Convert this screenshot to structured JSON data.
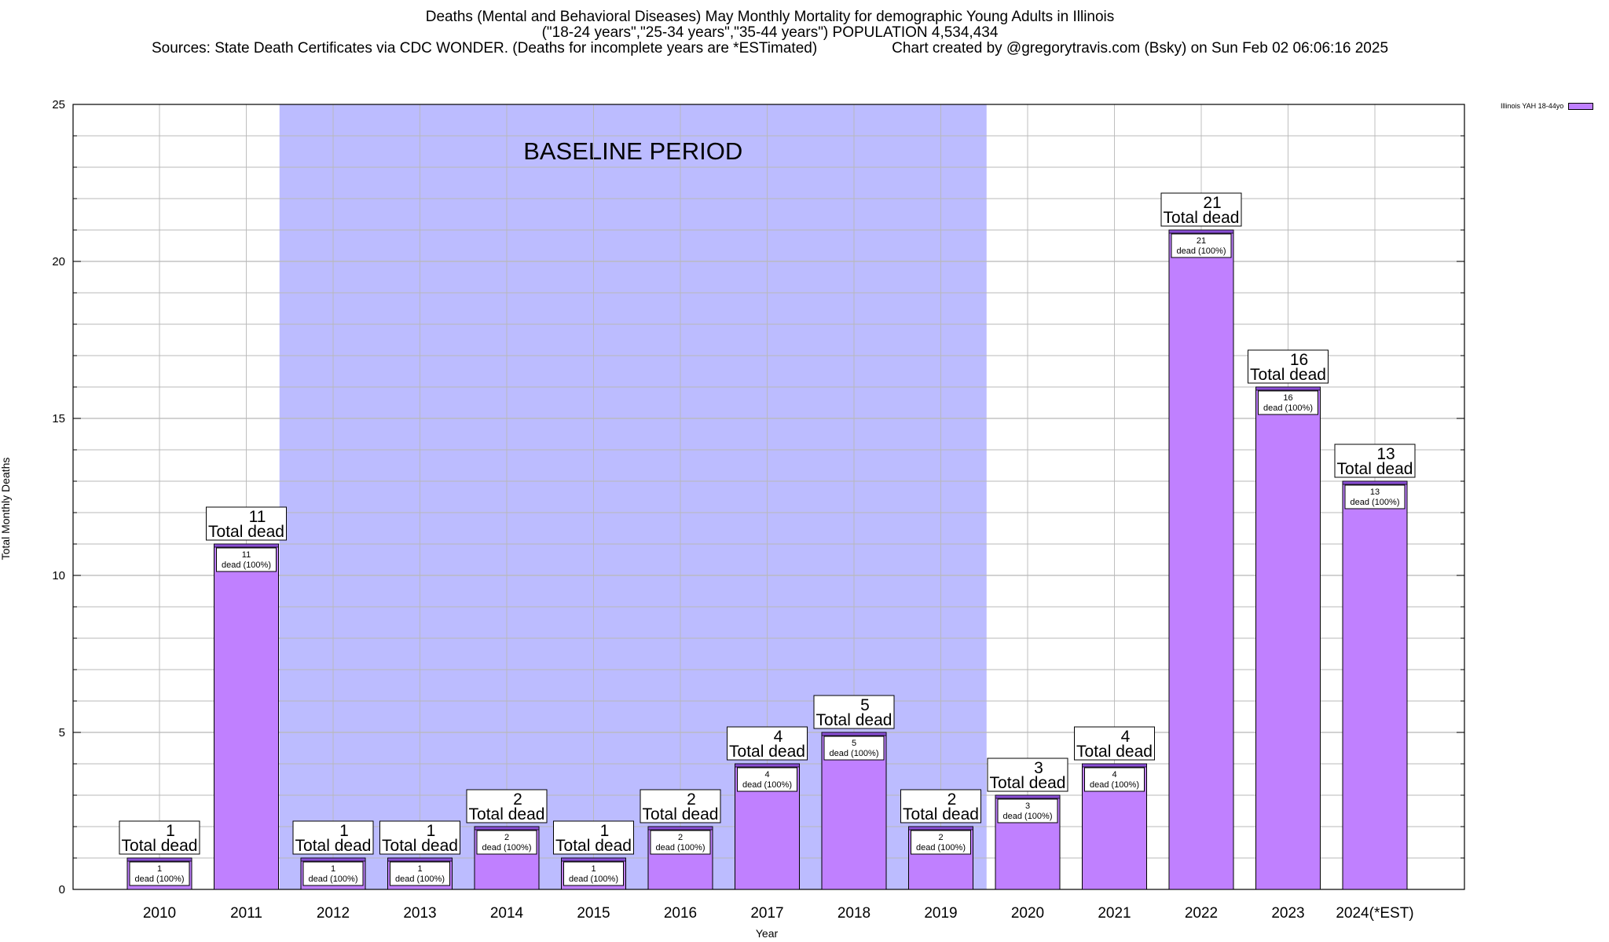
{
  "chart_data": {
    "type": "bar",
    "title": "Deaths (Mental and Behavioral Diseases) May Monthly Mortality for demographic Young Adults in Illinois",
    "subtitle": "(\"18-24 years\",\"25-34 years\",\"35-44 years\") POPULATION 4,534,434",
    "sources": "Sources: State Death Certificates via CDC WONDER. (Deaths for incomplete years are *ESTimated)",
    "credit": "Chart created by @gregorytravis.com (Bsky) on Sun Feb 02 06:06:16 2025",
    "xlabel": "Year",
    "ylabel": "Total Monthly Deaths",
    "ylim": [
      0,
      25
    ],
    "yticks": [
      0,
      5,
      10,
      15,
      20,
      25
    ],
    "grid": true,
    "categories": [
      "2010",
      "2011",
      "2012",
      "2013",
      "2014",
      "2015",
      "2016",
      "2017",
      "2018",
      "2019",
      "2020",
      "2021",
      "2022",
      "2023",
      "2024(*EST)"
    ],
    "series": [
      {
        "name": "Illinois YAH 18-44yo",
        "values": [
          1,
          11,
          1,
          1,
          2,
          1,
          2,
          4,
          5,
          2,
          3,
          4,
          21,
          16,
          13
        ]
      }
    ],
    "total_label_suffix": "Total dead",
    "inner_label_suffix": "dead (100%)",
    "baseline": {
      "label": "BASELINE PERIOD",
      "from": "2012",
      "to": "2019"
    },
    "legend_position": "top-right",
    "colors": {
      "bar": "#c080ff",
      "bar_top": "#8a4fd6",
      "baseline": "#bcbcff",
      "grid": "#b8b8b8"
    }
  }
}
